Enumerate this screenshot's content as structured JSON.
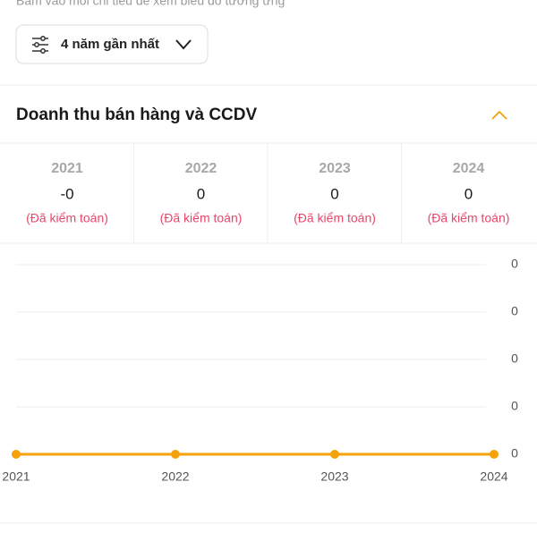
{
  "hint": "Bấm vào mỗi chỉ tiêu để xem biểu đồ tương ứng",
  "filter": {
    "label": "4 năm gần nhất"
  },
  "section": {
    "title": "Doanh thu bán hàng và CCDV"
  },
  "table": {
    "columns": [
      {
        "year": "2021",
        "value": "-0",
        "status": "(Đã kiểm toán)"
      },
      {
        "year": "2022",
        "value": "0",
        "status": "(Đã kiểm toán)"
      },
      {
        "year": "2023",
        "value": "0",
        "status": "(Đã kiểm toán)"
      },
      {
        "year": "2024",
        "value": "0",
        "status": "(Đã kiểm toán)"
      }
    ]
  },
  "chart_data": {
    "type": "line",
    "categories": [
      "2021",
      "2022",
      "2023",
      "2024"
    ],
    "series": [
      {
        "name": "Doanh thu bán hàng và CCDV",
        "color": "#f5a20a",
        "values": [
          0,
          0,
          0,
          0
        ]
      }
    ],
    "ylim": [
      0,
      0.4
    ],
    "yticks": [
      {
        "value": 0,
        "label": "0"
      },
      {
        "value": 0.1,
        "label": "0"
      },
      {
        "value": 0.2,
        "label": "0"
      },
      {
        "value": 0.3,
        "label": "0"
      },
      {
        "value": 0.4,
        "label": "0"
      }
    ],
    "grid": true
  }
}
